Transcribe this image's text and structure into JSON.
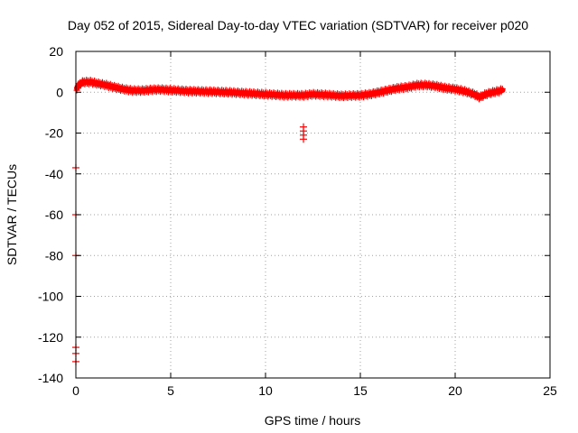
{
  "chart_data": {
    "type": "scatter",
    "title": "Day 052 of 2015, Sidereal Day-to-day VTEC variation (SDTVAR) for receiver p020",
    "xlabel": "GPS time / hours",
    "ylabel": "SDTVAR / TECUs",
    "xlim": [
      0,
      25
    ],
    "ylim": [
      -140,
      20
    ],
    "xticks": [
      0,
      5,
      10,
      15,
      20,
      25
    ],
    "yticks": [
      -140,
      -120,
      -100,
      -80,
      -60,
      -40,
      -20,
      0,
      20
    ],
    "xtick_labels": [
      "0",
      "5",
      "10",
      "15",
      "20",
      "25"
    ],
    "ytick_labels": [
      "-140",
      "-120",
      "-100",
      "-80",
      "-60",
      "-40",
      "-20",
      "0",
      "20"
    ],
    "grid": true,
    "marker": "plus",
    "series_color": "#ff0000",
    "series": [
      {
        "name": "SDTVAR",
        "trace": [
          [
            0.05,
            2
          ],
          [
            0.2,
            4
          ],
          [
            0.4,
            5
          ],
          [
            0.6,
            5
          ],
          [
            0.8,
            5
          ],
          [
            1.0,
            4.5
          ],
          [
            1.3,
            4
          ],
          [
            1.6,
            3.5
          ],
          [
            2.0,
            2.5
          ],
          [
            2.5,
            1.5
          ],
          [
            3.0,
            0.8
          ],
          [
            3.5,
            0.8
          ],
          [
            4.0,
            1.2
          ],
          [
            4.5,
            1.3
          ],
          [
            5.0,
            1.0
          ],
          [
            6.0,
            0.5
          ],
          [
            7.0,
            0.3
          ],
          [
            8.0,
            0
          ],
          [
            9.0,
            -0.5
          ],
          [
            10.0,
            -1
          ],
          [
            11.0,
            -1.5
          ],
          [
            12.0,
            -1.5
          ],
          [
            12.5,
            -1
          ],
          [
            13.0,
            -1.2
          ],
          [
            14.0,
            -1.8
          ],
          [
            15.0,
            -1.5
          ],
          [
            15.5,
            -1
          ],
          [
            16.0,
            0
          ],
          [
            16.5,
            1
          ],
          [
            17.0,
            2
          ],
          [
            17.5,
            2.5
          ],
          [
            18.0,
            3.5
          ],
          [
            18.5,
            3.5
          ],
          [
            19.0,
            3
          ],
          [
            19.5,
            2
          ],
          [
            20.0,
            1.5
          ],
          [
            20.5,
            0.5
          ],
          [
            21.0,
            -1
          ],
          [
            21.3,
            -2.5
          ],
          [
            21.6,
            -1
          ],
          [
            22.0,
            0
          ],
          [
            22.5,
            1
          ]
        ],
        "isolated": [
          [
            12.0,
            -17
          ],
          [
            12.0,
            -19
          ],
          [
            12.0,
            -21
          ],
          [
            12.0,
            -23
          ],
          [
            0.0,
            -37
          ],
          [
            0.0,
            -60
          ],
          [
            0.0,
            -80
          ],
          [
            0.0,
            -125
          ],
          [
            0.0,
            -128
          ],
          [
            0.0,
            -132
          ]
        ]
      }
    ]
  }
}
